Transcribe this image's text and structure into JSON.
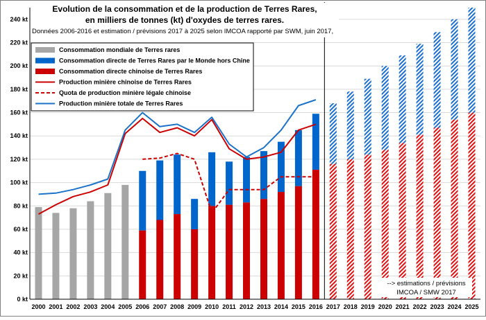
{
  "chart_data": {
    "type": "bar",
    "title_lines": [
      "Evolution de la consommation et de la production de Terres Rares,",
      "en milliers de tonnes (kt) d'oxydes de terres rares."
    ],
    "subtitle": "Données 2006-2016 et estimation / prévisions 2017 à 2025 selon IMCOA rapporté par SWM, juin 2017,",
    "note_lines": [
      "--> estimations / prévisions",
      "IMCOA / SMW 2017"
    ],
    "categories": [
      "2000",
      "2001",
      "2002",
      "2003",
      "2004",
      "2005",
      "2006",
      "2007",
      "2008",
      "2009",
      "2010",
      "2011",
      "2012",
      "2013",
      "2014",
      "2015",
      "2016",
      "2017",
      "2018",
      "2019",
      "2020",
      "2021",
      "2022",
      "2023",
      "2024",
      "2025"
    ],
    "y_tick_labels": [
      "0 kt",
      "20 kt",
      "40 kt",
      "60 kt",
      "80 kt",
      "100 kt",
      "120 kt",
      "140 kt",
      "160 kt",
      "180 kt",
      "200 kt",
      "220 kt",
      "240 kt"
    ],
    "ylim": [
      0,
      250
    ],
    "ytick_step": 20,
    "grid": true,
    "legend_position": "top-left",
    "forecast_start": "2017",
    "colors": {
      "world_consumption": "#a6a6a6",
      "non_china": "#0066cc",
      "china": "#cc0000",
      "china_mining": "#cc0000",
      "quota": "#cc0000",
      "total_mining": "#1a73c8"
    },
    "series": [
      {
        "name": "Consommation mondiale de Terres rares",
        "kind": "bar",
        "key": "world_consumption",
        "values": [
          79,
          74,
          78,
          84,
          91,
          98,
          null,
          null,
          null,
          null,
          null,
          null,
          null,
          null,
          null,
          null,
          null,
          null,
          null,
          null,
          null,
          null,
          null,
          null,
          null,
          null
        ]
      },
      {
        "name": "Consommation directe de Terres Rares par le Monde hors Chine",
        "kind": "bar-stacked",
        "key": "non_china",
        "values": [
          null,
          null,
          null,
          null,
          null,
          null,
          51,
          51,
          51,
          26,
          46,
          37,
          39,
          41,
          43,
          48,
          48,
          52,
          58,
          65,
          72,
          75,
          78,
          82,
          86,
          90
        ]
      },
      {
        "name": "Consommation directe chinoise de Terres Rares",
        "kind": "bar-stacked",
        "key": "china",
        "values": [
          null,
          null,
          null,
          null,
          null,
          null,
          59,
          68,
          73,
          60,
          80,
          81,
          83,
          86,
          92,
          97,
          111,
          116,
          120,
          124,
          128,
          134,
          141,
          147,
          154,
          160
        ]
      },
      {
        "name": "Production minière chinoise de Terres Rares",
        "kind": "line",
        "key": "china_mining",
        "values": [
          73,
          81,
          88,
          92,
          98,
          142,
          155,
          143,
          147,
          140,
          154,
          129,
          120,
          122,
          126,
          145,
          150,
          null,
          null,
          null,
          null,
          null,
          null,
          null,
          null,
          null
        ]
      },
      {
        "name": "Quota de production minière légale chinoise",
        "kind": "dashed",
        "key": "quota",
        "values": [
          null,
          null,
          null,
          null,
          null,
          null,
          120,
          121,
          125,
          120,
          74,
          94,
          94,
          94,
          105,
          105,
          105,
          null,
          null,
          null,
          null,
          null,
          null,
          null,
          null,
          null
        ]
      },
      {
        "name": "Production minière totale de Terres Rares",
        "kind": "line",
        "key": "total_mining",
        "values": [
          90,
          91,
          94,
          98,
          103,
          145,
          160,
          148,
          150,
          143,
          156,
          133,
          122,
          130,
          145,
          166,
          171,
          null,
          null,
          null,
          null,
          null,
          null,
          null,
          null,
          null
        ]
      }
    ]
  }
}
